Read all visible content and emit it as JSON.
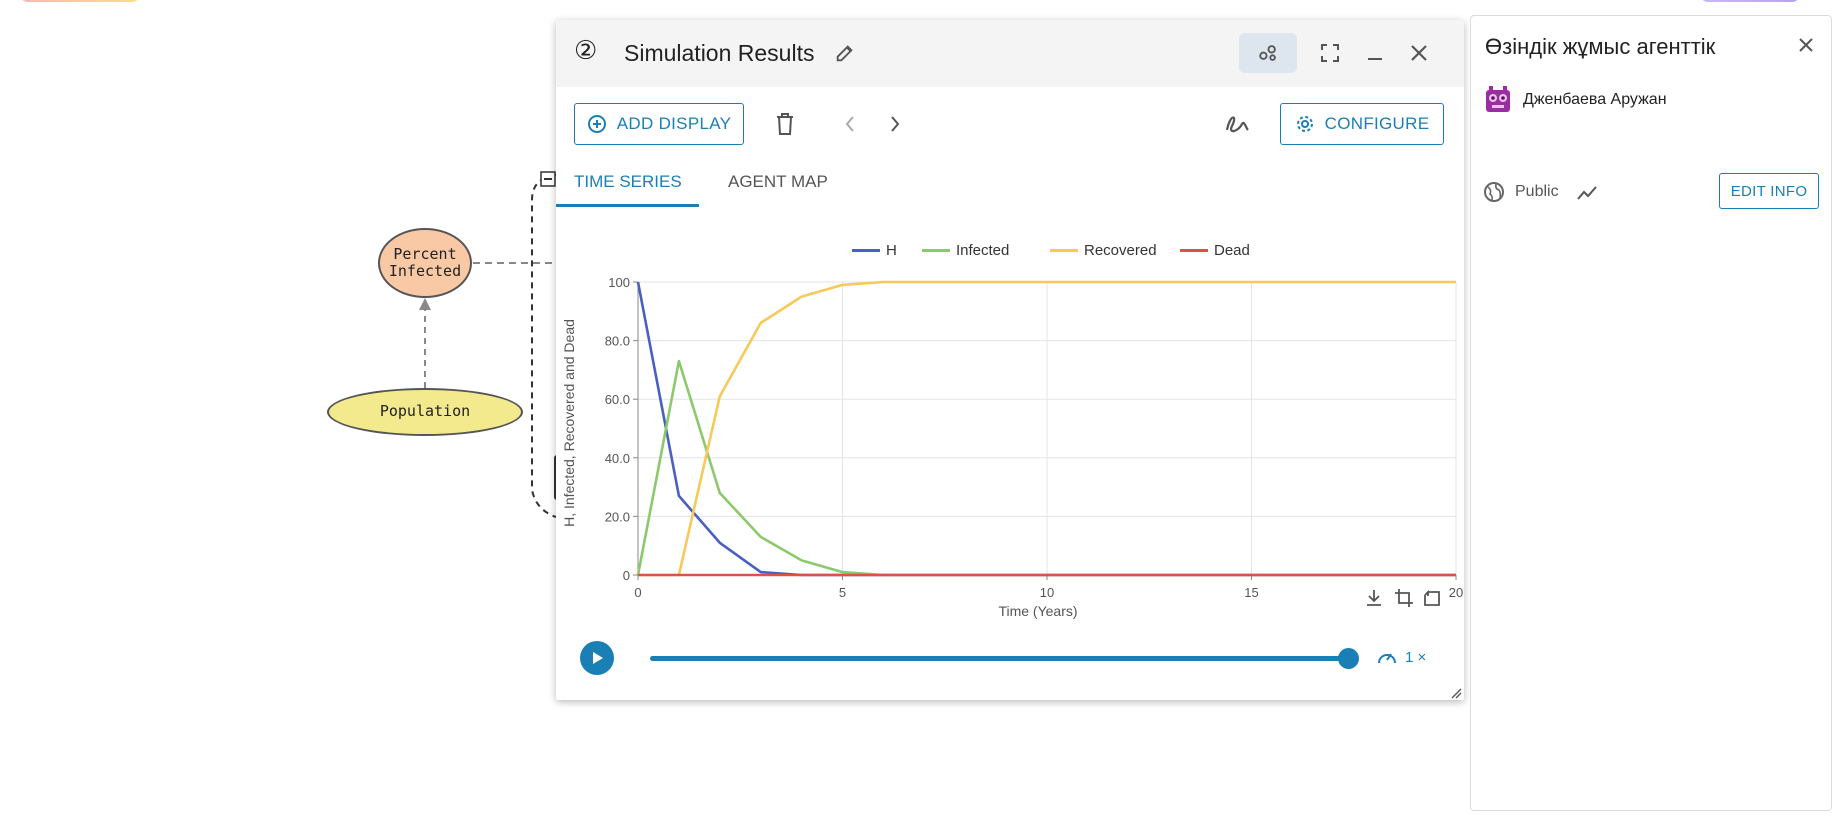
{
  "diagram": {
    "percent_infected": "Percent\nInfected",
    "population": "Population"
  },
  "window": {
    "number": "②",
    "title": "Simulation Results",
    "add_display": "ADD DISPLAY",
    "configure": "CONFIGURE",
    "tabs": [
      "TIME SERIES",
      "AGENT MAP"
    ],
    "speed": "1 ×",
    "playback_progress": 1.0
  },
  "chart_data": {
    "type": "line",
    "title": "",
    "xlabel": "Time (Years)",
    "ylabel": "H, Infected, Recovered and Dead",
    "xlim": [
      0,
      20
    ],
    "ylim": [
      0,
      100
    ],
    "x_ticks": [
      "0",
      "5",
      "10",
      "15",
      "20"
    ],
    "y_ticks": [
      "0",
      "20.0",
      "40.0",
      "60.0",
      "80.0",
      "100"
    ],
    "grid": true,
    "legend_position": "top",
    "x": [
      0,
      1,
      2,
      3,
      4,
      5,
      6,
      7,
      8,
      9,
      10,
      11,
      12,
      13,
      14,
      15,
      16,
      17,
      18,
      19,
      20
    ],
    "series": [
      {
        "name": "H",
        "color": "#4a5fc1",
        "values": [
          100,
          27,
          11,
          1,
          0,
          0,
          0,
          0,
          0,
          0,
          0,
          0,
          0,
          0,
          0,
          0,
          0,
          0,
          0,
          0,
          0
        ]
      },
      {
        "name": "Infected",
        "color": "#8cc96a",
        "values": [
          0,
          73,
          28,
          13,
          5,
          1,
          0,
          0,
          0,
          0,
          0,
          0,
          0,
          0,
          0,
          0,
          0,
          0,
          0,
          0,
          0
        ]
      },
      {
        "name": "Recovered",
        "color": "#f7c958",
        "values": [
          0,
          0,
          61,
          86,
          95,
          99,
          100,
          100,
          100,
          100,
          100,
          100,
          100,
          100,
          100,
          100,
          100,
          100,
          100,
          100,
          100
        ]
      },
      {
        "name": "Dead",
        "color": "#e0504a",
        "values": [
          0,
          0,
          0,
          0,
          0,
          0,
          0,
          0,
          0,
          0,
          0,
          0,
          0,
          0,
          0,
          0,
          0,
          0,
          0,
          0,
          0
        ]
      }
    ]
  },
  "panel": {
    "title": "Өзіндік жұмыс агенттік",
    "author": "Дженбаева Аружан",
    "visibility": "Public",
    "edit_info": "EDIT INFO"
  }
}
